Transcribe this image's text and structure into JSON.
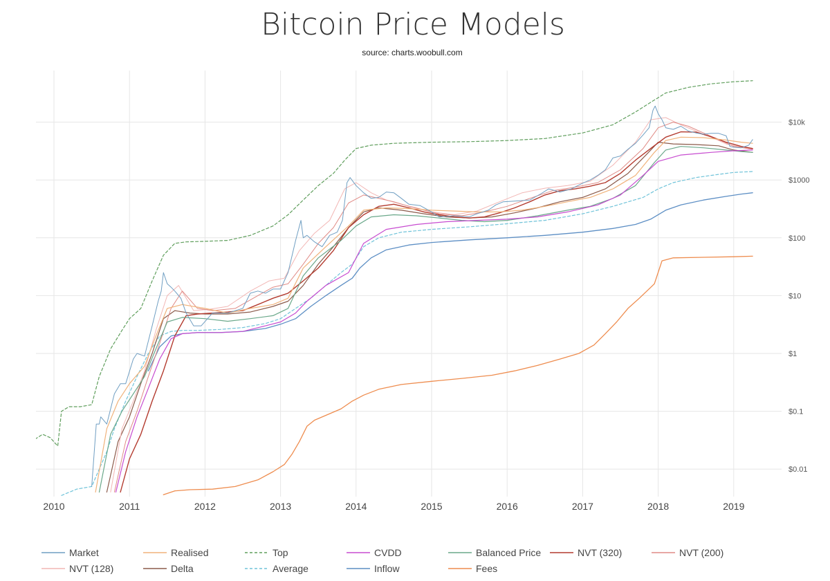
{
  "chart_data": {
    "type": "line",
    "title": "Bitcoin Price Models",
    "subtitle": "source: charts.woobull.com",
    "xlabel": "",
    "ylabel": "",
    "x_ticks": [
      "2010",
      "2011",
      "2012",
      "2013",
      "2014",
      "2015",
      "2016",
      "2017",
      "2018",
      "2019"
    ],
    "y_scale": "log",
    "ylim": [
      0.0035,
      80000
    ],
    "y_ticks": [
      {
        "value": 0.01,
        "label": "$0.01"
      },
      {
        "value": 0.1,
        "label": "$0.1"
      },
      {
        "value": 1,
        "label": "$1"
      },
      {
        "value": 10,
        "label": "$10"
      },
      {
        "value": 100,
        "label": "$100"
      },
      {
        "value": 1000,
        "label": "$1000"
      },
      {
        "value": 10000,
        "label": "$10k"
      }
    ],
    "grid": true,
    "legend_position": "bottom",
    "series": [
      {
        "name": "Market",
        "color": "#6f9ec2",
        "dash": "solid",
        "width": 1,
        "x": [
          2010.5,
          2010.56,
          2010.6,
          2010.62,
          2010.7,
          2010.8,
          2010.88,
          2010.95,
          2011.05,
          2011.1,
          2011.2,
          2011.3,
          2011.38,
          2011.42,
          2011.45,
          2011.5,
          2011.55,
          2011.6,
          2011.68,
          2011.75,
          2011.85,
          2011.95,
          2012.1,
          2012.3,
          2012.5,
          2012.6,
          2012.7,
          2012.8,
          2012.9,
          2013.0,
          2013.1,
          2013.2,
          2013.27,
          2013.3,
          2013.35,
          2013.45,
          2013.55,
          2013.65,
          2013.75,
          2013.82,
          2013.88,
          2013.92,
          2014.0,
          2014.1,
          2014.2,
          2014.3,
          2014.4,
          2014.5,
          2014.6,
          2014.7,
          2014.85,
          2015.0,
          2015.1,
          2015.3,
          2015.5,
          2015.6,
          2015.75,
          2015.85,
          2015.95,
          2016.1,
          2016.3,
          2016.45,
          2016.55,
          2016.7,
          2016.85,
          2017.0,
          2017.1,
          2017.2,
          2017.3,
          2017.4,
          2017.5,
          2017.6,
          2017.7,
          2017.8,
          2017.88,
          2017.93,
          2017.96,
          2018.0,
          2018.05,
          2018.1,
          2018.2,
          2018.3,
          2018.4,
          2018.5,
          2018.6,
          2018.7,
          2018.8,
          2018.9,
          2018.95,
          2019.0,
          2019.1,
          2019.2,
          2019.25
        ],
        "y": [
          0.005,
          0.06,
          0.06,
          0.08,
          0.06,
          0.2,
          0.3,
          0.3,
          0.8,
          1.0,
          0.9,
          3.0,
          8.0,
          12,
          25,
          16,
          14,
          12,
          9,
          5,
          3,
          3,
          5,
          5,
          6,
          11,
          12,
          11,
          13,
          13,
          25,
          90,
          200,
          100,
          110,
          85,
          70,
          110,
          125,
          200,
          900,
          1100,
          800,
          600,
          480,
          500,
          620,
          600,
          480,
          380,
          360,
          280,
          230,
          240,
          230,
          260,
          300,
          370,
          420,
          430,
          450,
          580,
          700,
          620,
          700,
          880,
          1000,
          1200,
          1500,
          2400,
          2600,
          3400,
          4300,
          6000,
          8000,
          16000,
          19000,
          14000,
          11000,
          8000,
          7500,
          8500,
          7000,
          6500,
          6200,
          6400,
          6400,
          5800,
          3800,
          3700,
          3600,
          4000,
          5000
        ]
      },
      {
        "name": "Realised",
        "color": "#f0b27a",
        "dash": "solid",
        "width": 1.2,
        "x": [
          2010.55,
          2010.7,
          2010.85,
          2011.0,
          2011.2,
          2011.35,
          2011.5,
          2011.7,
          2012.0,
          2012.3,
          2012.6,
          2012.9,
          2013.1,
          2013.3,
          2013.6,
          2013.9,
          2014.1,
          2014.4,
          2014.7,
          2015.0,
          2015.3,
          2015.6,
          2015.9,
          2016.2,
          2016.5,
          2016.8,
          2017.1,
          2017.4,
          2017.7,
          2017.95,
          2018.1,
          2018.3,
          2018.6,
          2018.9,
          2019.1,
          2019.25
        ],
        "y": [
          0.004,
          0.05,
          0.15,
          0.3,
          0.6,
          2,
          6,
          7,
          6,
          5,
          6,
          7,
          9,
          30,
          70,
          160,
          300,
          330,
          320,
          300,
          290,
          280,
          280,
          300,
          350,
          420,
          500,
          700,
          1200,
          3000,
          4800,
          5500,
          5400,
          4900,
          4500,
          4300
        ]
      },
      {
        "name": "Top",
        "color": "#5f9e5c",
        "dash": "4,3",
        "width": 1.2,
        "x": [
          2009.75,
          2009.85,
          2009.95,
          2010.05,
          2010.1,
          2010.2,
          2010.35,
          2010.5,
          2010.6,
          2010.75,
          2010.9,
          2011.0,
          2011.15,
          2011.3,
          2011.45,
          2011.6,
          2011.75,
          2012.0,
          2012.3,
          2012.6,
          2012.9,
          2013.1,
          2013.3,
          2013.5,
          2013.7,
          2013.85,
          2014.0,
          2014.2,
          2014.5,
          2015.0,
          2015.5,
          2016.0,
          2016.5,
          2017.0,
          2017.4,
          2017.7,
          2017.9,
          2018.1,
          2018.4,
          2018.7,
          2019.0,
          2019.25
        ],
        "y": [
          0.033,
          0.04,
          0.035,
          0.025,
          0.1,
          0.12,
          0.12,
          0.13,
          0.4,
          1.2,
          2.5,
          4,
          6,
          18,
          50,
          80,
          85,
          87,
          90,
          110,
          160,
          250,
          450,
          800,
          1300,
          2200,
          3500,
          4000,
          4300,
          4500,
          4600,
          4800,
          5200,
          6500,
          9000,
          15000,
          22000,
          32000,
          40000,
          46000,
          50000,
          52000
        ]
      },
      {
        "name": "CVDD",
        "color": "#c74bd0",
        "dash": "solid",
        "width": 1.2,
        "x": [
          2010.82,
          2010.95,
          2011.1,
          2011.25,
          2011.4,
          2011.55,
          2011.7,
          2011.9,
          2012.2,
          2012.5,
          2012.8,
          2013.0,
          2013.2,
          2013.35,
          2013.6,
          2013.9,
          2014.1,
          2014.4,
          2014.8,
          2015.2,
          2015.6,
          2016.0,
          2016.4,
          2016.8,
          2017.2,
          2017.5,
          2017.8,
          2018.0,
          2018.3,
          2018.7,
          2019.0,
          2019.25
        ],
        "y": [
          0.004,
          0.02,
          0.08,
          0.25,
          0.8,
          1.8,
          2.2,
          2.3,
          2.3,
          2.4,
          3.0,
          3.5,
          5,
          8,
          15,
          25,
          80,
          140,
          170,
          190,
          200,
          210,
          230,
          280,
          370,
          550,
          1200,
          2100,
          2700,
          3000,
          3200,
          3300
        ]
      },
      {
        "name": "Balanced Price",
        "color": "#6aa88a",
        "dash": "solid",
        "width": 1.2,
        "x": [
          2010.6,
          2010.75,
          2010.9,
          2011.05,
          2011.2,
          2011.35,
          2011.5,
          2011.7,
          2012.0,
          2012.3,
          2012.6,
          2012.9,
          2013.1,
          2013.3,
          2013.5,
          2013.8,
          2014.0,
          2014.2,
          2014.5,
          2014.8,
          2015.1,
          2015.4,
          2015.7,
          2016.0,
          2016.4,
          2016.8,
          2017.1,
          2017.4,
          2017.7,
          2017.95,
          2018.1,
          2018.3,
          2018.6,
          2018.9,
          2019.1,
          2019.25
        ],
        "y": [
          0.004,
          0.04,
          0.1,
          0.2,
          0.4,
          1.2,
          3.5,
          4.2,
          4.0,
          3.6,
          4.0,
          4.5,
          6,
          22,
          45,
          90,
          160,
          230,
          250,
          240,
          220,
          200,
          190,
          200,
          240,
          300,
          350,
          480,
          800,
          2000,
          3300,
          3800,
          3600,
          3300,
          3100,
          3000
        ]
      },
      {
        "name": "NVT (320)",
        "color": "#b33a2e",
        "dash": "solid",
        "width": 1.4,
        "x": [
          2010.88,
          2011.0,
          2011.15,
          2011.3,
          2011.45,
          2011.6,
          2011.75,
          2011.9,
          2012.1,
          2012.3,
          2012.5,
          2012.7,
          2012.9,
          2013.1,
          2013.3,
          2013.5,
          2013.7,
          2013.9,
          2014.1,
          2014.3,
          2014.5,
          2014.7,
          2014.9,
          2015.1,
          2015.3,
          2015.5,
          2015.7,
          2015.9,
          2016.1,
          2016.3,
          2016.5,
          2016.7,
          2016.9,
          2017.1,
          2017.3,
          2017.5,
          2017.7,
          2017.9,
          2018.1,
          2018.3,
          2018.5,
          2018.7,
          2018.9,
          2019.1,
          2019.25
        ],
        "y": [
          0.004,
          0.015,
          0.04,
          0.15,
          0.5,
          2.0,
          4.5,
          4.8,
          5.0,
          5.2,
          5.5,
          7,
          9,
          11,
          18,
          30,
          60,
          150,
          250,
          350,
          380,
          330,
          280,
          250,
          230,
          220,
          230,
          270,
          330,
          420,
          550,
          650,
          700,
          780,
          900,
          1300,
          2200,
          3500,
          5500,
          6800,
          6700,
          5600,
          4500,
          3800,
          3500
        ]
      },
      {
        "name": "NVT (200)",
        "color": "#e08a85",
        "dash": "solid",
        "width": 1,
        "x": [
          2010.8,
          2010.95,
          2011.1,
          2011.25,
          2011.4,
          2011.55,
          2011.7,
          2011.9,
          2012.1,
          2012.4,
          2012.7,
          2012.9,
          2013.1,
          2013.3,
          2013.5,
          2013.7,
          2013.9,
          2014.1,
          2014.3,
          2014.5,
          2014.7,
          2014.9,
          2015.1,
          2015.4,
          2015.7,
          2016.0,
          2016.3,
          2016.6,
          2016.9,
          2017.2,
          2017.5,
          2017.8,
          2018.0,
          2018.2,
          2018.4,
          2018.6,
          2018.8,
          2019.0,
          2019.25
        ],
        "y": [
          0.004,
          0.03,
          0.1,
          0.4,
          1.5,
          6,
          12,
          6,
          5.5,
          6,
          10,
          14,
          16,
          35,
          80,
          150,
          400,
          550,
          480,
          420,
          350,
          300,
          260,
          240,
          280,
          350,
          480,
          650,
          750,
          900,
          1500,
          3500,
          8000,
          10000,
          8500,
          6500,
          5000,
          3800,
          3400
        ]
      },
      {
        "name": "NVT (128)",
        "color": "#f2b6b4",
        "dash": "solid",
        "width": 1,
        "x": [
          2010.75,
          2010.9,
          2011.05,
          2011.2,
          2011.35,
          2011.5,
          2011.65,
          2011.85,
          2012.05,
          2012.3,
          2012.6,
          2012.85,
          2013.05,
          2013.25,
          2013.45,
          2013.65,
          2013.85,
          2014.0,
          2014.2,
          2014.4,
          2014.6,
          2014.8,
          2015.0,
          2015.3,
          2015.6,
          2015.9,
          2016.2,
          2016.5,
          2016.8,
          2017.1,
          2017.4,
          2017.7,
          2017.9,
          2018.1,
          2018.3,
          2018.5,
          2018.7,
          2018.9,
          2019.1,
          2019.25
        ],
        "y": [
          0.004,
          0.05,
          0.15,
          0.5,
          2.5,
          10,
          15,
          5.5,
          5.8,
          6.5,
          12,
          18,
          20,
          60,
          120,
          200,
          700,
          900,
          600,
          450,
          380,
          330,
          280,
          250,
          290,
          420,
          600,
          720,
          800,
          950,
          1800,
          4500,
          11000,
          12000,
          9000,
          7000,
          5500,
          4200,
          3700,
          3500
        ]
      },
      {
        "name": "Delta",
        "color": "#8b5a4a",
        "dash": "solid",
        "width": 1.2,
        "x": [
          2010.7,
          2010.85,
          2011.0,
          2011.15,
          2011.3,
          2011.45,
          2011.6,
          2011.8,
          2012.0,
          2012.3,
          2012.6,
          2012.9,
          2013.1,
          2013.3,
          2013.5,
          2013.7,
          2013.9,
          2014.1,
          2014.3,
          2014.6,
          2014.9,
          2015.2,
          2015.5,
          2015.8,
          2016.1,
          2016.4,
          2016.7,
          2017.0,
          2017.3,
          2017.6,
          2017.85,
          2018.0,
          2018.2,
          2018.5,
          2018.8,
          2019.0,
          2019.25
        ],
        "y": [
          0.004,
          0.03,
          0.08,
          0.3,
          1.0,
          4,
          5.5,
          5.0,
          4.8,
          4.8,
          5.2,
          6.5,
          8,
          15,
          35,
          70,
          150,
          280,
          330,
          300,
          260,
          230,
          220,
          230,
          270,
          330,
          420,
          500,
          700,
          1300,
          2800,
          4500,
          4200,
          4100,
          3900,
          3300,
          3000
        ]
      },
      {
        "name": "Average",
        "color": "#6fc3d9",
        "dash": "4,3",
        "width": 1.2,
        "x": [
          2010.1,
          2010.3,
          2010.5,
          2010.6,
          2010.7,
          2010.8,
          2010.95,
          2011.1,
          2011.25,
          2011.4,
          2011.55,
          2011.7,
          2011.9,
          2012.2,
          2012.5,
          2012.8,
          2013.0,
          2013.2,
          2013.4,
          2013.6,
          2013.8,
          2013.95,
          2014.1,
          2014.3,
          2014.6,
          2015.0,
          2015.5,
          2016.0,
          2016.5,
          2017.0,
          2017.4,
          2017.8,
          2018.0,
          2018.2,
          2018.5,
          2018.8,
          2019.0,
          2019.25
        ],
        "y": [
          0.0035,
          0.0045,
          0.005,
          0.01,
          0.02,
          0.05,
          0.15,
          0.4,
          1.0,
          2.0,
          2.4,
          2.5,
          2.5,
          2.6,
          2.8,
          3.3,
          4,
          6,
          9,
          15,
          25,
          35,
          70,
          100,
          125,
          140,
          155,
          175,
          200,
          260,
          350,
          500,
          700,
          900,
          1100,
          1250,
          1350,
          1400
        ]
      },
      {
        "name": "Inflow",
        "color": "#5c8ec4",
        "dash": "solid",
        "width": 1.3,
        "x": [
          2011.25,
          2011.4,
          2011.55,
          2011.7,
          2011.9,
          2012.2,
          2012.5,
          2012.8,
          2013.0,
          2013.2,
          2013.4,
          2013.6,
          2013.8,
          2013.95,
          2014.05,
          2014.2,
          2014.4,
          2014.7,
          2015.0,
          2015.5,
          2016.0,
          2016.5,
          2017.0,
          2017.4,
          2017.7,
          2017.9,
          2018.1,
          2018.3,
          2018.6,
          2018.9,
          2019.1,
          2019.25
        ],
        "y": [
          0.5,
          1.3,
          2.0,
          2.2,
          2.3,
          2.3,
          2.4,
          2.7,
          3.2,
          4.0,
          6.5,
          10,
          15,
          20,
          30,
          45,
          62,
          75,
          83,
          92,
          100,
          110,
          125,
          145,
          170,
          210,
          300,
          370,
          450,
          520,
          570,
          600
        ]
      },
      {
        "name": "Fees",
        "color": "#ee8c4e",
        "dash": "solid",
        "width": 1.3,
        "x": [
          2011.45,
          2011.6,
          2011.8,
          2012.1,
          2012.4,
          2012.7,
          2012.9,
          2013.05,
          2013.15,
          2013.25,
          2013.35,
          2013.45,
          2013.6,
          2013.8,
          2013.95,
          2014.1,
          2014.3,
          2014.6,
          2015.0,
          2015.4,
          2015.8,
          2016.1,
          2016.4,
          2016.7,
          2016.95,
          2017.15,
          2017.3,
          2017.45,
          2017.6,
          2017.75,
          2017.85,
          2017.95,
          2018.05,
          2018.2,
          2018.6,
          2019.0,
          2019.25
        ],
        "y": [
          0.0036,
          0.0042,
          0.0044,
          0.0045,
          0.005,
          0.0065,
          0.009,
          0.012,
          0.018,
          0.03,
          0.055,
          0.07,
          0.085,
          0.11,
          0.15,
          0.19,
          0.24,
          0.29,
          0.33,
          0.37,
          0.42,
          0.5,
          0.62,
          0.8,
          1.0,
          1.4,
          2.2,
          3.5,
          6,
          9,
          12,
          16,
          40,
          45,
          46,
          47,
          48
        ]
      }
    ]
  }
}
